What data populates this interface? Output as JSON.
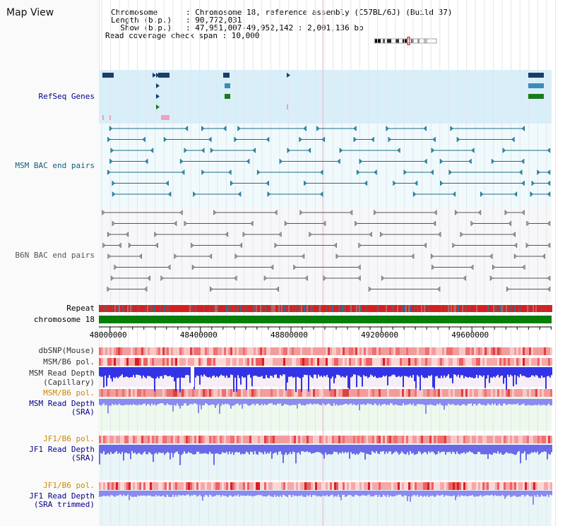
{
  "title": "Map View",
  "info": {
    "line1": "Chromosome      : Chromosome 18, reference assembly (C57BL/6J) (Build 37)",
    "line2": "Length (b.p.)   : 90,772,031",
    "line3": "  Show (b.p.)   : 47,951,007-49,952,142 : 2,001,136 bp",
    "line4": "Read coverage check span : 10,000"
  },
  "colors": {
    "refseq_bg": "#d8eff9",
    "bac_bg": "#f0fafc",
    "b6n_bg": "#f7f7fa",
    "msm_arrow": "#2a8aa6",
    "msm_line": "#1d6c86",
    "b6n_line": "#555555",
    "refseq_dark": "#1b3c6c",
    "refseq_green": "#1b7a1b",
    "repeat_red": "#d62020",
    "chrom_green": "#087d08",
    "snp_pink": "#f29c9c",
    "depth_blue": "#3333e6",
    "depth_light": "#8a8af0",
    "pol_label": "#cc8800",
    "label_blue": "#00008b",
    "label_teal": "#14607a"
  },
  "labels": {
    "refseq": "RefSeq Genes",
    "msm_bac": "MSM BAC end pairs",
    "b6n_bac": "B6N BAC end pairs",
    "repeat": "Repeat",
    "chromosome": "chromosome 18",
    "dbsnp": "dbSNP(Mouse)",
    "msm_b6_pol_1": "MSM/B6 pol.",
    "msm_read_depth_cap": "MSM Read Depth",
    "msm_read_depth_cap_sub": "(Capillary)",
    "msm_b6_pol_2": "MSM/B6 pol.",
    "msm_read_depth_sra": "MSM Read Depth",
    "msm_read_depth_sra_sub": "(SRA)",
    "jf1_b6_pol_1": "JF1/B6 pol.",
    "jf1_read_depth": "JF1 Read Depth",
    "jf1_read_depth_sub": "(SRA)",
    "jf1_b6_pol_2": "JF1/B6 pol.",
    "jf1_read_depth_trim": "JF1 Read Depth",
    "jf1_read_depth_trim_sub": "(SRA trimmed)"
  },
  "scale": {
    "ticks": [
      {
        "value": 48000000,
        "label": "48000000"
      },
      {
        "value": 48400000,
        "label": "48400000"
      },
      {
        "value": 48800000,
        "label": "48800000"
      },
      {
        "value": 49200000,
        "label": "49200000"
      },
      {
        "value": 49600000,
        "label": "49600000"
      }
    ],
    "range": [
      47951007,
      49952142
    ]
  }
}
